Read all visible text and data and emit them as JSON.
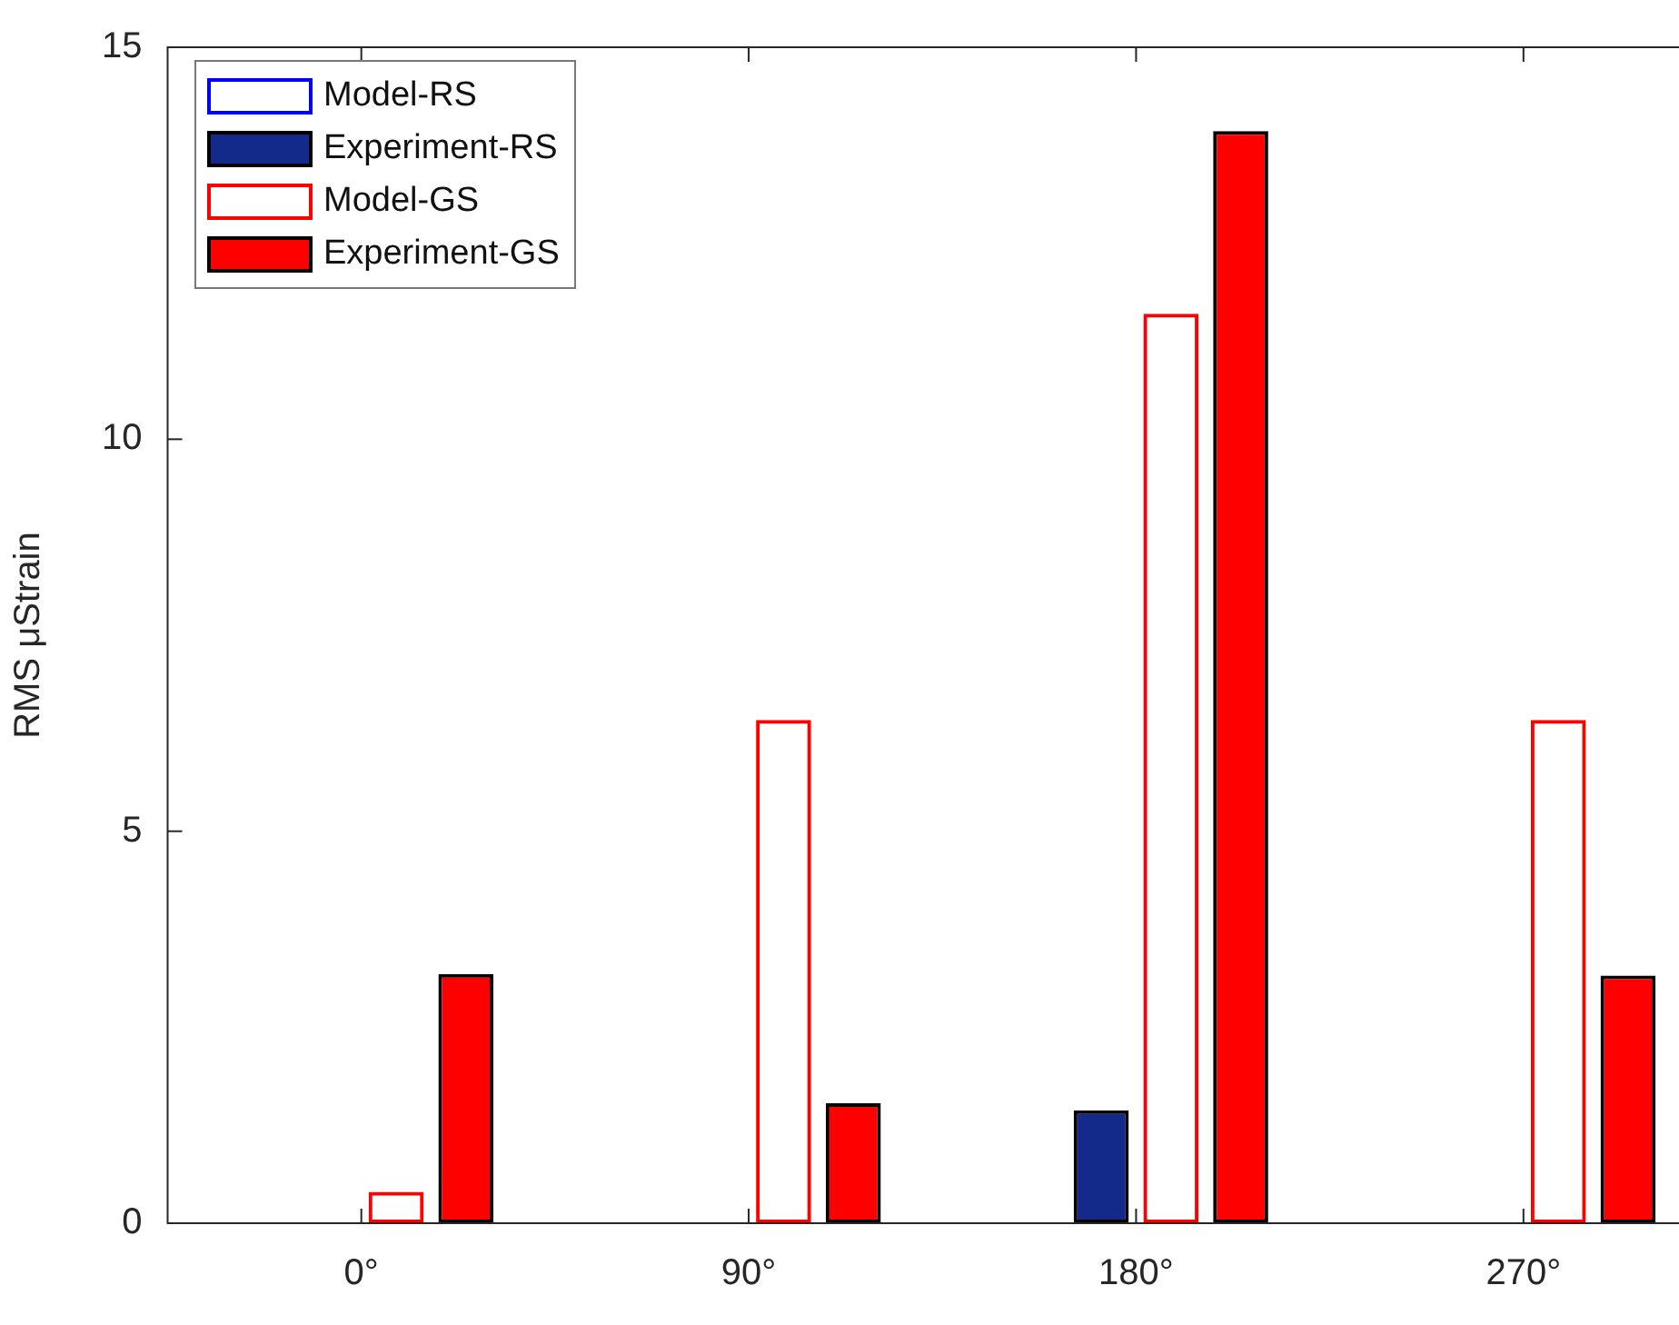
{
  "chart_data": {
    "type": "bar",
    "ylabel": "RMS μStrain",
    "categories": [
      "0°",
      "90°",
      "180°",
      "270°"
    ],
    "series": [
      {
        "name": "Model-RS",
        "color": "#0000ff",
        "values": [
          0,
          0,
          0,
          0
        ]
      },
      {
        "name": "Experiment-RS",
        "color": "#132a8a",
        "values": [
          null,
          null,
          1.44,
          null
        ]
      },
      {
        "name": "Model-GS",
        "color": "#ff0000",
        "values": [
          0.4,
          6.42,
          11.6,
          6.42
        ]
      },
      {
        "name": "Experiment-GS",
        "color": "#ff0000",
        "values": [
          3.18,
          1.53,
          13.93,
          3.16
        ]
      }
    ],
    "ylim": [
      0,
      15
    ],
    "yticks": [
      0,
      5,
      10,
      15
    ],
    "grid": false,
    "legend": "top left"
  }
}
